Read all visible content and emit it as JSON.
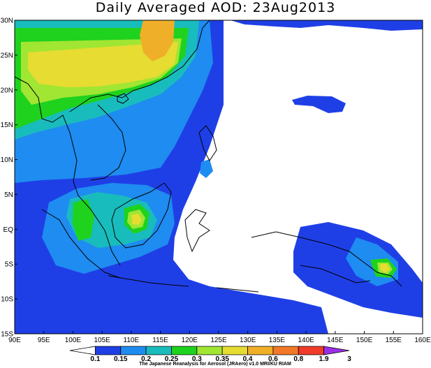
{
  "title": "Daily Averaged AOD: 23Aug2013",
  "credit": "The Japanese Reanalysis for Aerosol (JRAero) v1.0 MRI/KU RIAM",
  "map": {
    "variable": "AOD",
    "date": "23Aug2013",
    "lat_labels": [
      "30N",
      "25N",
      "20N",
      "15N",
      "10N",
      "5N",
      "EQ",
      "5S",
      "10S",
      "15S"
    ],
    "lon_labels": [
      "90E",
      "95E",
      "100E",
      "105E",
      "110E",
      "115E",
      "120E",
      "125E",
      "130E",
      "135E",
      "140E",
      "145E",
      "150E",
      "155E",
      "160E"
    ],
    "lat_range": [
      -15,
      30
    ],
    "lon_range": [
      90,
      160
    ]
  },
  "colorbar": {
    "levels": [
      "0.1",
      "0.15",
      "0.2",
      "0.25",
      "0.3",
      "0.35",
      "0.4",
      "0.6",
      "0.8",
      "1.9",
      "3"
    ],
    "colors": [
      "#ffffff",
      "#1f3fe6",
      "#1e8cf0",
      "#19bcbc",
      "#1ed21e",
      "#a0e632",
      "#e6dc32",
      "#f0af28",
      "#f07828",
      "#f03c28",
      "#9b2fe6"
    ]
  },
  "palette": {
    "blue_dark": "#1f3fe6",
    "blue_light": "#1e8cf0",
    "teal": "#19bcbc",
    "green": "#1ed21e",
    "yellow_green": "#a0e632",
    "yellow": "#e6dc32",
    "orange_light": "#f0af28"
  }
}
